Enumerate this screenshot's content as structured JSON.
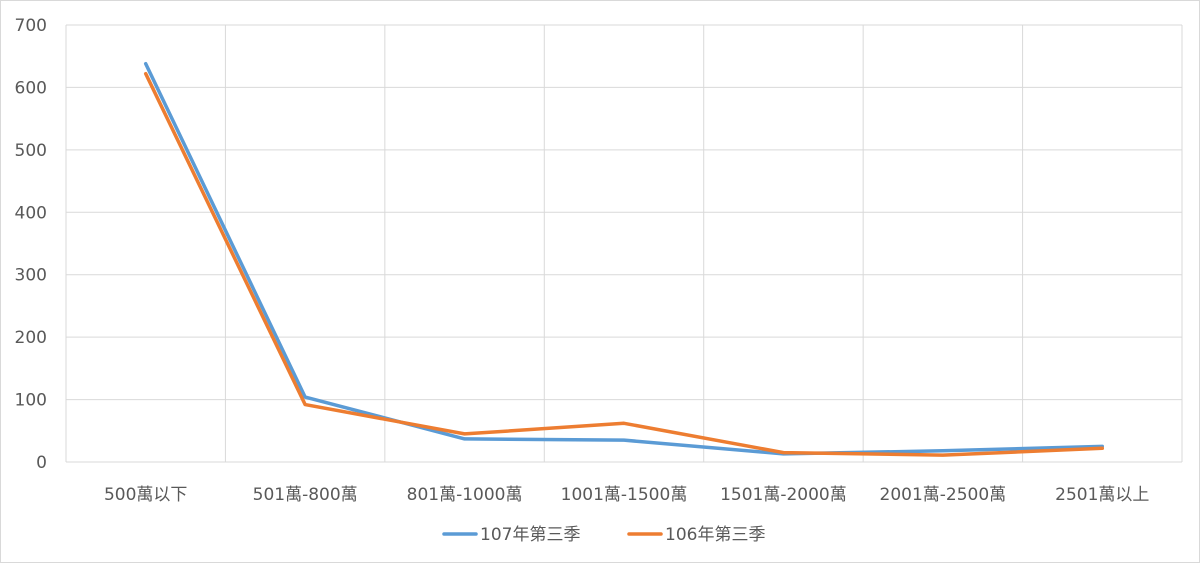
{
  "chart_data": {
    "type": "line",
    "categories": [
      "500萬以下",
      "501萬-800萬",
      "801萬-1000萬",
      "1001萬-1500萬",
      "1501萬-2000萬",
      "2001萬-2500萬",
      "2501萬以上"
    ],
    "series": [
      {
        "name": "107年第三季",
        "color": "#5b9bd5",
        "values": [
          638,
          104,
          37,
          35,
          13,
          18,
          25
        ]
      },
      {
        "name": "106年第三季",
        "color": "#ed7d31",
        "values": [
          622,
          92,
          45,
          62,
          15,
          11,
          22
        ]
      }
    ],
    "ylim": [
      0,
      700
    ],
    "yticks": [
      0,
      100,
      200,
      300,
      400,
      500,
      600,
      700
    ],
    "grid": true,
    "legend_position": "bottom"
  }
}
